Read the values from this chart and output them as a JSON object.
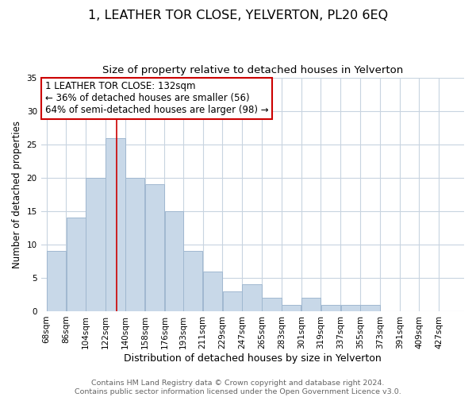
{
  "title": "1, LEATHER TOR CLOSE, YELVERTON, PL20 6EQ",
  "subtitle": "Size of property relative to detached houses in Yelverton",
  "xlabel": "Distribution of detached houses by size in Yelverton",
  "ylabel": "Number of detached properties",
  "bar_labels": [
    "68sqm",
    "86sqm",
    "104sqm",
    "122sqm",
    "140sqm",
    "158sqm",
    "176sqm",
    "193sqm",
    "211sqm",
    "229sqm",
    "247sqm",
    "265sqm",
    "283sqm",
    "301sqm",
    "319sqm",
    "337sqm",
    "355sqm",
    "373sqm",
    "391sqm",
    "409sqm",
    "427sqm"
  ],
  "bar_values": [
    9,
    14,
    20,
    26,
    20,
    19,
    15,
    9,
    6,
    3,
    4,
    2,
    1,
    2,
    1,
    1,
    1,
    0,
    0,
    0,
    0
  ],
  "bar_color": "#c8d8e8",
  "bar_edge_color": "#a0b8d0",
  "ylim": [
    0,
    35
  ],
  "yticks": [
    0,
    5,
    10,
    15,
    20,
    25,
    30,
    35
  ],
  "annotation_title": "1 LEATHER TOR CLOSE: 132sqm",
  "annotation_line1": "← 36% of detached houses are smaller (56)",
  "annotation_line2": "64% of semi-detached houses are larger (98) →",
  "annotation_box_color": "#ffffff",
  "annotation_box_edge_color": "#cc0000",
  "ref_line_x": 132,
  "ref_line_color": "#cc0000",
  "footer_line1": "Contains HM Land Registry data © Crown copyright and database right 2024.",
  "footer_line2": "Contains public sector information licensed under the Open Government Licence v3.0.",
  "background_color": "#ffffff",
  "grid_color": "#c8d4e0",
  "title_fontsize": 11.5,
  "subtitle_fontsize": 9.5,
  "xlabel_fontsize": 9,
  "ylabel_fontsize": 8.5,
  "tick_fontsize": 7.5,
  "footer_fontsize": 6.8,
  "ann_fontsize": 8.5,
  "bin_edges": [
    68,
    86,
    104,
    122,
    140,
    158,
    176,
    193,
    211,
    229,
    247,
    265,
    283,
    301,
    319,
    337,
    355,
    373,
    391,
    409,
    427,
    445
  ]
}
